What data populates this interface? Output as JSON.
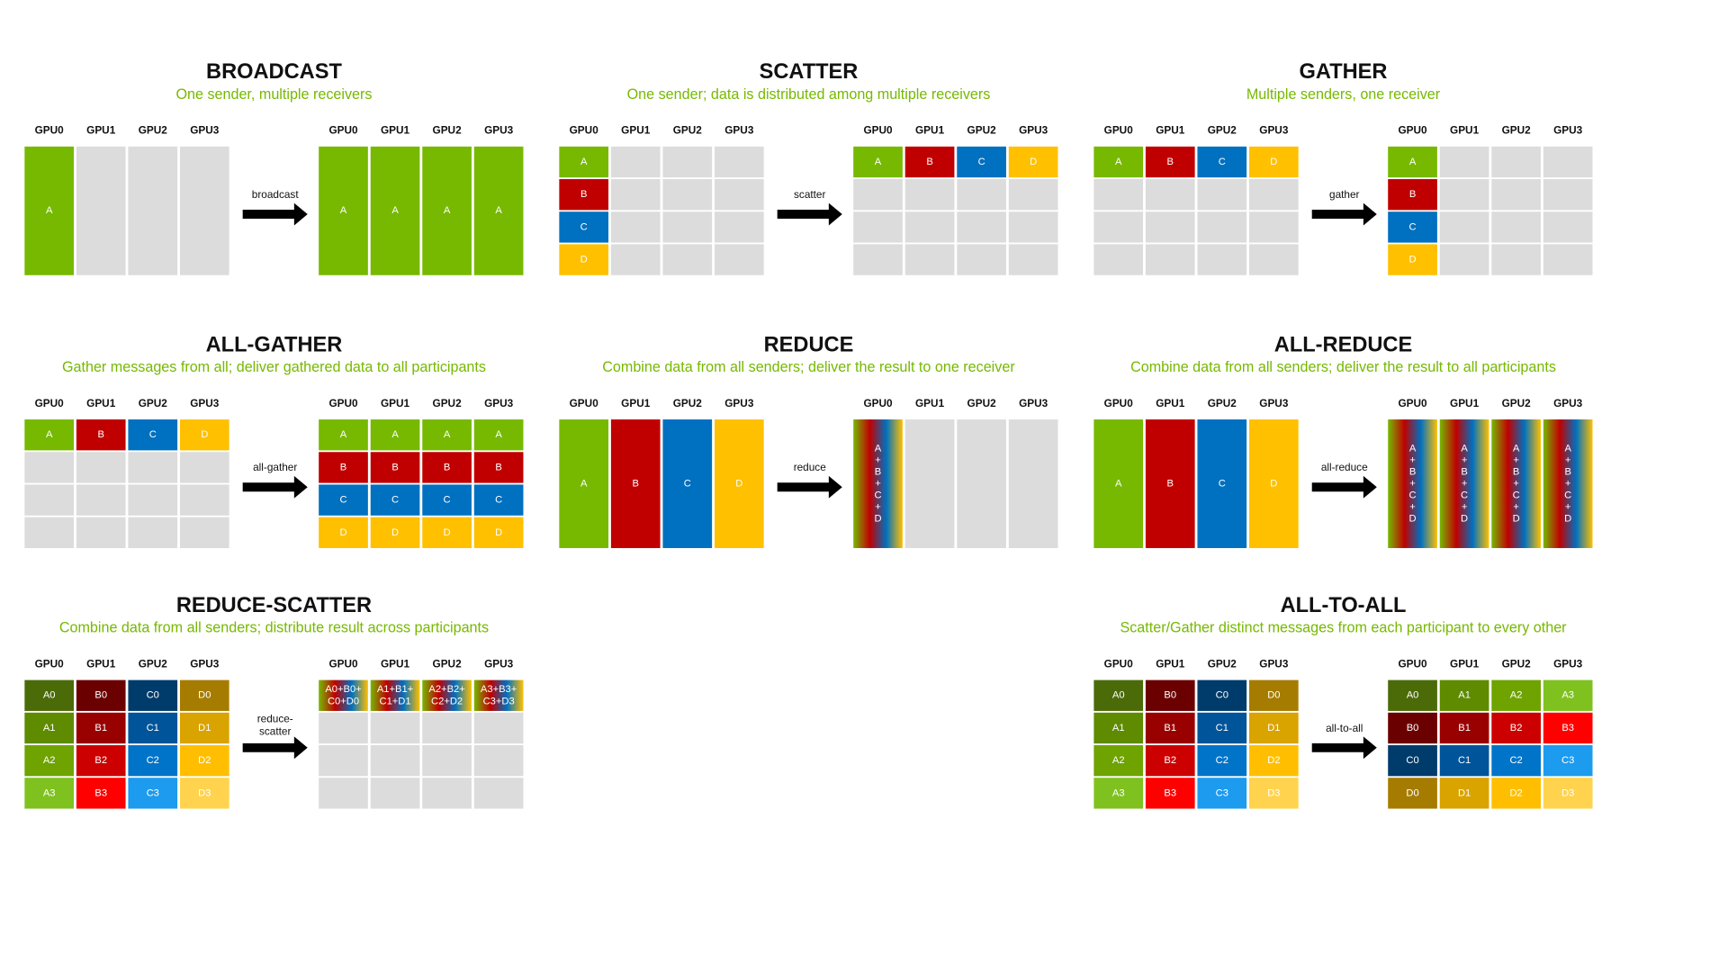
{
  "gpu_labels": [
    "GPU0",
    "GPU1",
    "GPU2",
    "GPU3"
  ],
  "palette": {
    "A": "#76b900",
    "B": "#c00000",
    "C": "#0070c0",
    "D": "#ffc000",
    "A0": "#4b6b08",
    "A1": "#5e8b00",
    "A2": "#6ea300",
    "A3": "#7fc21f",
    "B0": "#6b0000",
    "B1": "#990000",
    "B2": "#cc0000",
    "B3": "#ff0000",
    "C0": "#003c6b",
    "C1": "#005499",
    "C2": "#0074c8",
    "C3": "#1d9bef",
    "D0": "#a67c00",
    "D1": "#d9a300",
    "D2": "#ffbf00",
    "D3": "#ffd34d"
  },
  "gradient_colors": [
    "#76b900",
    "#c00000",
    "#0070c0",
    "#ffc000"
  ],
  "empty_color": "#dcdcdc",
  "panels": [
    {
      "title": "BROADCAST",
      "subtitle": "One sender, multiple receivers",
      "arrow_label": "broadcast",
      "before": [
        [
          "A"
        ],
        [
          null
        ],
        [
          null
        ],
        [
          null
        ]
      ],
      "after": [
        [
          "A"
        ],
        [
          "A"
        ],
        [
          "A"
        ],
        [
          "A"
        ]
      ]
    },
    {
      "title": "SCATTER",
      "subtitle": "One sender; data is distributed among multiple receivers",
      "arrow_label": "scatter",
      "before": [
        [
          "A",
          "B",
          "C",
          "D"
        ],
        [
          null,
          null,
          null,
          null
        ],
        [
          null,
          null,
          null,
          null
        ],
        [
          null,
          null,
          null,
          null
        ]
      ],
      "after": [
        [
          "A",
          null,
          null,
          null
        ],
        [
          "B",
          null,
          null,
          null
        ],
        [
          "C",
          null,
          null,
          null
        ],
        [
          "D",
          null,
          null,
          null
        ]
      ]
    },
    {
      "title": "GATHER",
      "subtitle": "Multiple senders, one receiver",
      "arrow_label": "gather",
      "before": [
        [
          "A",
          null,
          null,
          null
        ],
        [
          "B",
          null,
          null,
          null
        ],
        [
          "C",
          null,
          null,
          null
        ],
        [
          "D",
          null,
          null,
          null
        ]
      ],
      "after": [
        [
          "A",
          "B",
          "C",
          "D"
        ],
        [
          null,
          null,
          null,
          null
        ],
        [
          null,
          null,
          null,
          null
        ],
        [
          null,
          null,
          null,
          null
        ]
      ]
    },
    {
      "title": "ALL-GATHER",
      "subtitle": "Gather messages from all; deliver gathered data to all participants",
      "arrow_label": "all-gather",
      "before": [
        [
          "A",
          null,
          null,
          null
        ],
        [
          "B",
          null,
          null,
          null
        ],
        [
          "C",
          null,
          null,
          null
        ],
        [
          "D",
          null,
          null,
          null
        ]
      ],
      "after": [
        [
          "A",
          "B",
          "C",
          "D"
        ],
        [
          "A",
          "B",
          "C",
          "D"
        ],
        [
          "A",
          "B",
          "C",
          "D"
        ],
        [
          "A",
          "B",
          "C",
          "D"
        ]
      ]
    },
    {
      "title": "REDUCE",
      "subtitle": "Combine data from all senders; deliver the result to one receiver",
      "arrow_label": "reduce",
      "before": [
        [
          "A"
        ],
        [
          "B"
        ],
        [
          "C"
        ],
        [
          "D"
        ]
      ],
      "after": [
        [
          "A+B+C+D"
        ],
        [
          null
        ],
        [
          null
        ],
        [
          null
        ]
      ]
    },
    {
      "title": "ALL-REDUCE",
      "subtitle": "Combine data from all senders; deliver the result to all participants",
      "arrow_label": "all-reduce",
      "before": [
        [
          "A"
        ],
        [
          "B"
        ],
        [
          "C"
        ],
        [
          "D"
        ]
      ],
      "after": [
        [
          "A+B+C+D"
        ],
        [
          "A+B+C+D"
        ],
        [
          "A+B+C+D"
        ],
        [
          "A+B+C+D"
        ]
      ]
    },
    {
      "title": "REDUCE-SCATTER",
      "subtitle": "Combine data from all senders; distribute result across participants",
      "arrow_label": "reduce-scatter",
      "before": [
        [
          "A0",
          "A1",
          "A2",
          "A3"
        ],
        [
          "B0",
          "B1",
          "B2",
          "B3"
        ],
        [
          "C0",
          "C1",
          "C2",
          "C3"
        ],
        [
          "D0",
          "D1",
          "D2",
          "D3"
        ]
      ],
      "after": [
        [
          "A0+B0+C0+D0",
          null,
          null,
          null
        ],
        [
          "A1+B1+C1+D1",
          null,
          null,
          null
        ],
        [
          "A2+B2+C2+D2",
          null,
          null,
          null
        ],
        [
          "A3+B3+C3+D3",
          null,
          null,
          null
        ]
      ]
    },
    {
      "title": "ALL-TO-ALL",
      "subtitle": "Scatter/Gather distinct messages from each participant to every other",
      "arrow_label": "all-to-all",
      "before": [
        [
          "A0",
          "A1",
          "A2",
          "A3"
        ],
        [
          "B0",
          "B1",
          "B2",
          "B3"
        ],
        [
          "C0",
          "C1",
          "C2",
          "C3"
        ],
        [
          "D0",
          "D1",
          "D2",
          "D3"
        ]
      ],
      "after": [
        [
          "A0",
          "B0",
          "C0",
          "D0"
        ],
        [
          "A1",
          "B1",
          "C1",
          "D1"
        ],
        [
          "A2",
          "B2",
          "C2",
          "D2"
        ],
        [
          "A3",
          "B3",
          "C3",
          "D3"
        ]
      ]
    }
  ]
}
